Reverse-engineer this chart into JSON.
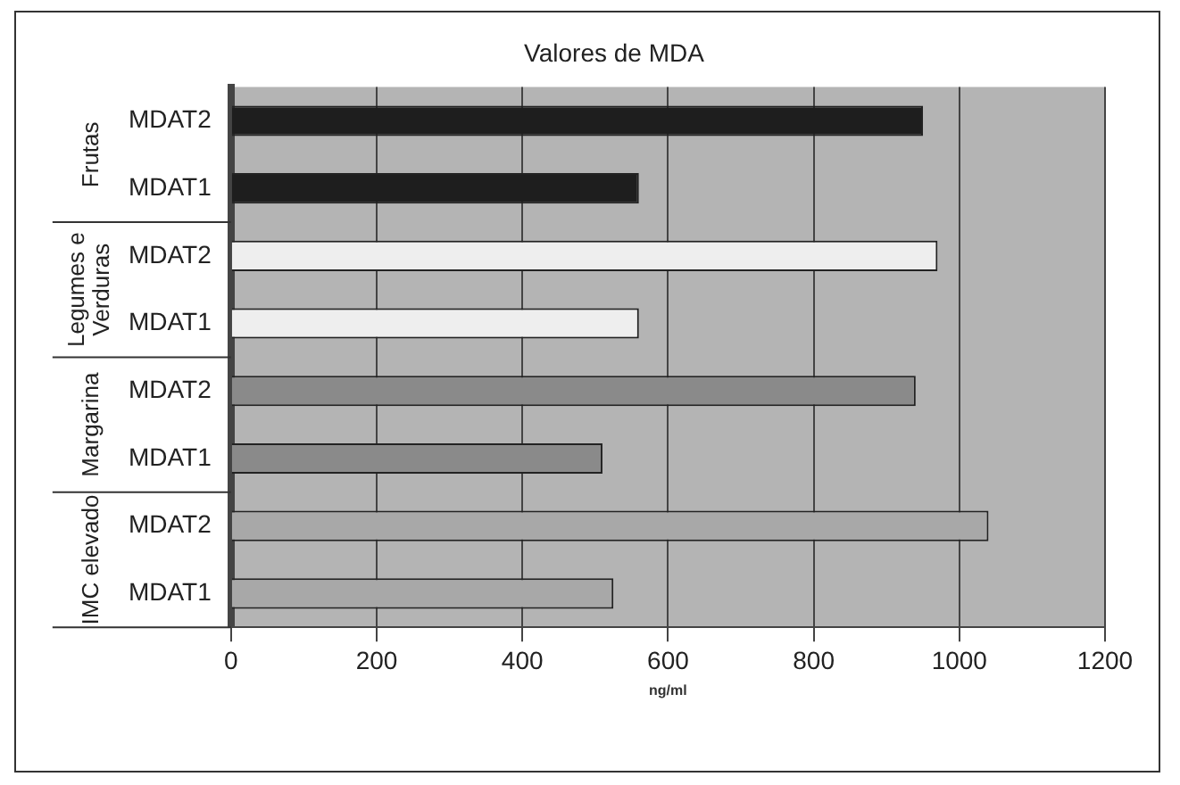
{
  "chart_data": {
    "type": "bar",
    "orientation": "horizontal",
    "title": "Valores de MDA",
    "xlabel": "ng/ml",
    "categories": [
      "MDAT2",
      "MDAT1",
      "MDAT2",
      "MDAT1",
      "MDAT2",
      "MDAT1",
      "MDAT2",
      "MDAT1"
    ],
    "values": [
      950,
      560,
      970,
      560,
      940,
      510,
      1040,
      525
    ],
    "colors": [
      "#1e1e1e",
      "#1e1e1e",
      "#eeeeee",
      "#eeeeee",
      "#8a8a8a",
      "#8a8a8a",
      "#a8a8a8",
      "#a8a8a8"
    ],
    "annotations": [
      "Frutas",
      "Legumes e\nVerduras",
      "Margarina",
      "IMC elevado"
    ],
    "xlim": [
      0,
      1200
    ],
    "xticks": [
      0,
      200,
      400,
      600,
      800,
      1000,
      1200
    ],
    "grid": "x",
    "legend": false
  }
}
